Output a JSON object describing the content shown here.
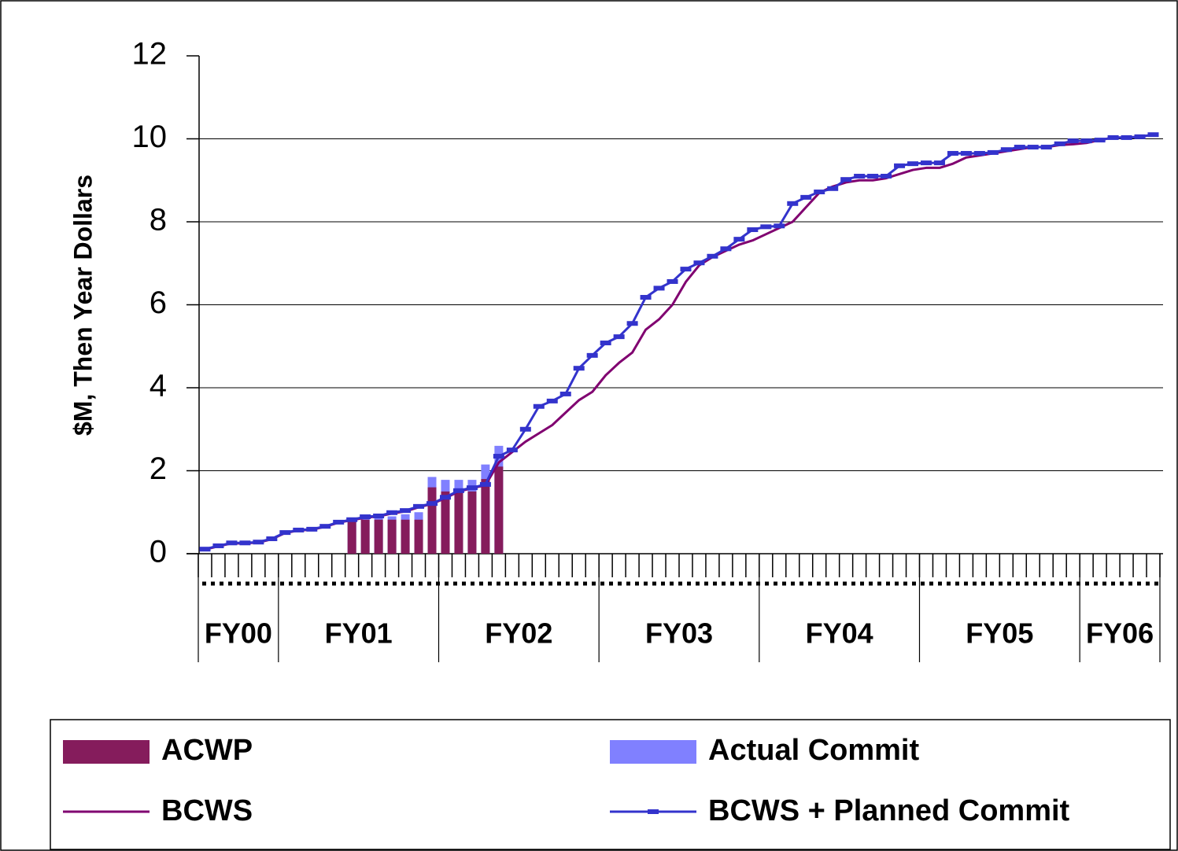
{
  "chart_data": {
    "type": "combo",
    "y_axis_label": "$M, Then Year Dollars",
    "ylim": [
      0,
      12
    ],
    "yticks": [
      0,
      2,
      4,
      6,
      8,
      10,
      12
    ],
    "grid": true,
    "fiscal_years": [
      {
        "label": "FY00",
        "months": 6
      },
      {
        "label": "FY01",
        "months": 12
      },
      {
        "label": "FY02",
        "months": 12
      },
      {
        "label": "FY03",
        "months": 12
      },
      {
        "label": "FY04",
        "months": 12
      },
      {
        "label": "FY05",
        "months": 12
      },
      {
        "label": "FY06",
        "months": 6
      }
    ],
    "categories": [
      null,
      null,
      null,
      null,
      null,
      null,
      null,
      null,
      null,
      null,
      null,
      null,
      null,
      null,
      null,
      null,
      null,
      null,
      null,
      null,
      null,
      null,
      null,
      null,
      null,
      null,
      null,
      null,
      null,
      null,
      null,
      null,
      null,
      null,
      null,
      null,
      null,
      null,
      null,
      null,
      null,
      null,
      null,
      null,
      null,
      null,
      null,
      null,
      null,
      null,
      null,
      null,
      null,
      null,
      null,
      null,
      null,
      null,
      null,
      null,
      null,
      null,
      null,
      null,
      null,
      null,
      null,
      null,
      null,
      null,
      null,
      null
    ],
    "series": [
      {
        "name": "ACWP",
        "type": "bar",
        "color": "#851c5c",
        "values": [
          null,
          null,
          null,
          null,
          null,
          null,
          null,
          null,
          null,
          null,
          null,
          0.8,
          0.82,
          0.82,
          0.82,
          0.82,
          0.82,
          1.6,
          1.5,
          1.5,
          1.5,
          1.8,
          2.1,
          null,
          null,
          null,
          null,
          null,
          null,
          null,
          null,
          null,
          null,
          null,
          null,
          null,
          null,
          null,
          null,
          null,
          null,
          null,
          null,
          null,
          null,
          null,
          null,
          null,
          null,
          null,
          null,
          null,
          null,
          null,
          null,
          null,
          null,
          null,
          null,
          null,
          null,
          null,
          null,
          null,
          null,
          null,
          null,
          null,
          null,
          null,
          null,
          null
        ]
      },
      {
        "name": "Actual Commit",
        "type": "bar",
        "color": "#8080ff",
        "values": [
          null,
          null,
          null,
          null,
          null,
          null,
          null,
          null,
          null,
          null,
          null,
          0.85,
          0.88,
          0.88,
          0.9,
          0.95,
          1.0,
          1.85,
          1.78,
          1.78,
          1.78,
          2.15,
          2.6,
          null,
          null,
          null,
          null,
          null,
          null,
          null,
          null,
          null,
          null,
          null,
          null,
          null,
          null,
          null,
          null,
          null,
          null,
          null,
          null,
          null,
          null,
          null,
          null,
          null,
          null,
          null,
          null,
          null,
          null,
          null,
          null,
          null,
          null,
          null,
          null,
          null,
          null,
          null,
          null,
          null,
          null,
          null,
          null,
          null,
          null,
          null,
          null,
          null
        ]
      },
      {
        "name": "BCWS",
        "type": "line",
        "color": "#800070",
        "marker": false,
        "values": [
          0.1,
          0.18,
          0.25,
          0.25,
          0.27,
          0.35,
          0.5,
          0.56,
          0.58,
          0.65,
          0.75,
          0.81,
          0.87,
          0.9,
          0.97,
          1.02,
          1.12,
          1.2,
          1.34,
          1.5,
          1.58,
          1.65,
          2.2,
          2.45,
          2.7,
          2.9,
          3.1,
          3.4,
          3.7,
          3.9,
          4.3,
          4.6,
          4.85,
          5.4,
          5.65,
          6.0,
          6.55,
          6.95,
          7.15,
          7.3,
          7.45,
          7.55,
          7.7,
          7.85,
          8.0,
          8.35,
          8.7,
          8.85,
          8.95,
          9.0,
          9.0,
          9.05,
          9.15,
          9.25,
          9.3,
          9.3,
          9.4,
          9.55,
          9.6,
          9.65,
          9.7,
          9.75,
          9.8,
          9.8,
          9.85,
          9.87,
          9.9,
          9.97,
          10.03,
          10.03,
          10.05,
          10.1
        ]
      },
      {
        "name": "BCWS + Planned Commit",
        "type": "line",
        "color": "#3333cc",
        "marker": true,
        "values": [
          0.11,
          0.19,
          0.26,
          0.26,
          0.28,
          0.36,
          0.51,
          0.57,
          0.59,
          0.66,
          0.76,
          0.82,
          0.89,
          0.91,
          0.99,
          1.04,
          1.14,
          1.21,
          1.36,
          1.52,
          1.59,
          1.67,
          2.35,
          2.5,
          3.0,
          3.55,
          3.68,
          3.85,
          4.47,
          4.78,
          5.08,
          5.23,
          5.55,
          6.18,
          6.4,
          6.56,
          6.86,
          7.01,
          7.17,
          7.35,
          7.58,
          7.81,
          7.88,
          7.9,
          8.44,
          8.59,
          8.72,
          8.8,
          9.02,
          9.1,
          9.1,
          9.1,
          9.35,
          9.4,
          9.42,
          9.42,
          9.65,
          9.65,
          9.65,
          9.67,
          9.74,
          9.8,
          9.8,
          9.8,
          9.88,
          9.95,
          9.95,
          9.97,
          10.03,
          10.03,
          10.05,
          10.1
        ]
      }
    ]
  }
}
